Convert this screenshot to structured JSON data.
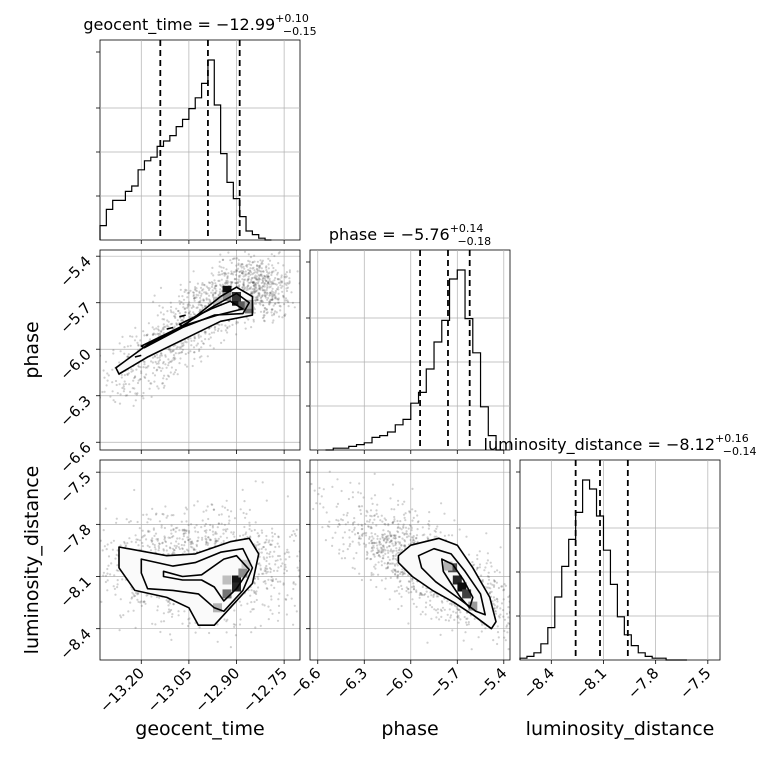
{
  "colors": {
    "ink": "#000000",
    "grid": "#b0b0b0",
    "background": "#ffffff"
  },
  "chart_data": {
    "type": "corner",
    "parameters": [
      "geocent_time",
      "phase",
      "luminosity_distance"
    ],
    "axis_labels": {
      "x": [
        "geocent_time",
        "phase",
        "luminosity_distance"
      ],
      "y": [
        "phase",
        "luminosity_distance"
      ]
    },
    "ranges": {
      "geocent_time": [
        -13.33,
        -12.7
      ],
      "phase": [
        -6.65,
        -5.36
      ],
      "luminosity_distance": [
        -8.58,
        -7.43
      ]
    },
    "ticks": {
      "geocent_time": {
        "values": [
          -13.2,
          -13.05,
          -12.9,
          -12.75
        ],
        "labels": [
          "−13.20",
          "−13.05",
          "−12.90",
          "−12.75"
        ]
      },
      "phase": {
        "values": [
          -6.6,
          -6.3,
          -6.0,
          -5.7,
          -5.4
        ],
        "labels": [
          "−6.6",
          "−6.3",
          "−6.0",
          "−5.7",
          "−5.4"
        ]
      },
      "phase_y": {
        "values": [
          -5.4,
          -5.7,
          -6.0,
          -6.3,
          -6.6
        ],
        "labels": [
          "−5.4",
          "−5.7",
          "−6.0",
          "−6.3",
          "−6.6"
        ]
      },
      "luminosity_distance": {
        "values": [
          -8.4,
          -8.1,
          -7.8,
          -7.5
        ],
        "labels": [
          "−8.4",
          "−8.1",
          "−7.8",
          "−7.5"
        ]
      },
      "luminosity_distance_y": {
        "values": [
          -7.5,
          -7.8,
          -8.1,
          -8.4
        ],
        "labels": [
          "−7.5",
          "−7.8",
          "−8.1",
          "−8.4"
        ]
      }
    },
    "titles": [
      {
        "parameter": "geocent_time",
        "prefix": "geocent_time = −12.99",
        "sup": "+0.10",
        "sub": "−0.15"
      },
      {
        "parameter": "phase",
        "prefix": "phase = −5.76",
        "sup": "+0.14",
        "sub": "−0.18"
      },
      {
        "parameter": "luminosity_distance",
        "prefix": "luminosity_distance = −8.12",
        "sup": "+0.16",
        "sub": "−0.14"
      }
    ],
    "grid": true,
    "histograms": [
      {
        "parameter": "geocent_time",
        "bins": [
          -13.33,
          -13.31,
          -13.29,
          -13.27,
          -13.25,
          -13.23,
          -13.21,
          -13.19,
          -13.17,
          -13.15,
          -13.13,
          -13.11,
          -13.09,
          -13.07,
          -13.05,
          -13.03,
          -13.01,
          -12.99,
          -12.97,
          -12.95,
          -12.93,
          -12.91,
          -12.89,
          -12.87,
          -12.85,
          -12.83,
          -12.81,
          -12.79
        ],
        "counts": [
          0.08,
          0.17,
          0.22,
          0.22,
          0.27,
          0.3,
          0.39,
          0.44,
          0.46,
          0.52,
          0.55,
          0.58,
          0.63,
          0.67,
          0.73,
          0.79,
          0.87,
          1.0,
          0.75,
          0.48,
          0.32,
          0.23,
          0.13,
          0.05,
          0.03,
          0.01,
          0.0
        ],
        "quantiles": [
          -13.14,
          -12.99,
          -12.89
        ]
      },
      {
        "parameter": "phase",
        "bins": [
          -6.55,
          -6.5,
          -6.45,
          -6.4,
          -6.35,
          -6.3,
          -6.25,
          -6.2,
          -6.15,
          -6.1,
          -6.05,
          -6.0,
          -5.95,
          -5.9,
          -5.85,
          -5.8,
          -5.75,
          -5.7,
          -5.65,
          -5.6,
          -5.55,
          -5.5,
          -5.45,
          -5.4
        ],
        "counts": [
          0.0,
          0.01,
          0.01,
          0.02,
          0.03,
          0.04,
          0.07,
          0.08,
          0.1,
          0.14,
          0.17,
          0.26,
          0.32,
          0.45,
          0.6,
          0.72,
          0.95,
          1.0,
          0.73,
          0.54,
          0.24,
          0.08,
          0.0
        ],
        "quantiles": [
          -5.94,
          -5.76,
          -5.62
        ]
      },
      {
        "parameter": "luminosity_distance",
        "bins": [
          -8.58,
          -8.54,
          -8.5,
          -8.46,
          -8.42,
          -8.38,
          -8.34,
          -8.3,
          -8.26,
          -8.22,
          -8.18,
          -8.14,
          -8.1,
          -8.06,
          -8.02,
          -7.98,
          -7.94,
          -7.9,
          -7.86,
          -7.82,
          -7.78,
          -7.74,
          -7.7,
          -7.66,
          -7.62
        ],
        "counts": [
          0.01,
          0.02,
          0.04,
          0.09,
          0.18,
          0.35,
          0.52,
          0.67,
          0.82,
          1.0,
          0.95,
          0.8,
          0.61,
          0.42,
          0.24,
          0.14,
          0.08,
          0.04,
          0.02,
          0.01,
          0.01,
          0.0,
          0.0,
          0.0
        ],
        "quantiles": [
          -8.26,
          -8.12,
          -7.96
        ]
      }
    ],
    "panels_2d": [
      {
        "x": "geocent_time",
        "y": "phase",
        "samples": {
          "count": 1400,
          "seed": 11,
          "sigma": 0.03,
          "pivot": [
            -12.86,
            -5.52
          ],
          "left": [
            -13.31,
            -6.3
          ],
          "right": [
            -12.76,
            -5.72
          ],
          "peak": [
            -12.89,
            -5.62
          ]
        },
        "contours": [
          [
            [
              -13.28,
              -6.12
            ],
            [
              -13.18,
              -5.97
            ],
            [
              -13.06,
              -5.84
            ],
            [
              -12.95,
              -5.66
            ],
            [
              -12.9,
              -5.6
            ],
            [
              -12.85,
              -5.66
            ],
            [
              -12.85,
              -5.78
            ],
            [
              -12.95,
              -5.82
            ],
            [
              -13.05,
              -5.92
            ],
            [
              -13.18,
              -6.05
            ],
            [
              -13.27,
              -6.16
            ]
          ],
          [
            [
              -13.2,
              -5.98
            ],
            [
              -13.08,
              -5.86
            ],
            [
              -12.97,
              -5.72
            ],
            [
              -12.9,
              -5.64
            ],
            [
              -12.86,
              -5.7
            ],
            [
              -12.88,
              -5.77
            ],
            [
              -12.97,
              -5.78
            ],
            [
              -13.07,
              -5.86
            ],
            [
              -13.19,
              -5.99
            ]
          ],
          [
            [
              -13.08,
              -5.84
            ],
            [
              -12.98,
              -5.74
            ],
            [
              -12.92,
              -5.69
            ],
            [
              -12.88,
              -5.74
            ],
            [
              -12.96,
              -5.78
            ],
            [
              -13.07,
              -5.85
            ]
          ],
          [
            [
              -13.22,
              -6.05
            ],
            [
              -13.2,
              -6.04
            ]
          ],
          [
            [
              -13.12,
              -5.87
            ],
            [
              -13.1,
              -5.86
            ]
          ],
          [
            [
              -13.08,
              -5.79
            ],
            [
              -13.06,
              -5.78
            ]
          ]
        ],
        "density_cells": [
          [
            -12.93,
            -5.62,
            0.95
          ],
          [
            -12.9,
            -5.69,
            0.92
          ],
          [
            -12.9,
            -5.66,
            0.8
          ],
          [
            -12.88,
            -5.72,
            0.65
          ],
          [
            -12.86,
            -5.74,
            0.55
          ],
          [
            -12.93,
            -5.66,
            0.45
          ],
          [
            -12.86,
            -5.71,
            0.35
          ],
          [
            -12.96,
            -5.69,
            0.25
          ]
        ]
      },
      {
        "x": "geocent_time",
        "y": "luminosity_distance",
        "samples": {
          "count": 1400,
          "seed": 23,
          "sigma": 0.09,
          "center": [
            -13.02,
            -8.05
          ],
          "spread": [
            0.16,
            0.15
          ],
          "peak": [
            -12.89,
            -8.15
          ]
        },
        "contours": [
          [
            [
              -13.27,
              -7.93
            ],
            [
              -13.12,
              -7.98
            ],
            [
              -13.03,
              -7.97
            ],
            [
              -12.92,
              -7.9
            ],
            [
              -12.86,
              -7.88
            ],
            [
              -12.83,
              -7.97
            ],
            [
              -12.85,
              -8.14
            ],
            [
              -12.92,
              -8.28
            ],
            [
              -12.97,
              -8.38
            ],
            [
              -13.02,
              -8.38
            ],
            [
              -13.05,
              -8.28
            ],
            [
              -13.12,
              -8.22
            ],
            [
              -13.22,
              -8.18
            ],
            [
              -13.27,
              -8.05
            ],
            [
              -13.27,
              -7.93
            ]
          ],
          [
            [
              -13.2,
              -8.0
            ],
            [
              -13.1,
              -8.04
            ],
            [
              -13.03,
              -8.02
            ],
            [
              -12.95,
              -7.96
            ],
            [
              -12.88,
              -7.94
            ],
            [
              -12.85,
              -8.05
            ],
            [
              -12.88,
              -8.18
            ],
            [
              -12.94,
              -8.3
            ],
            [
              -12.97,
              -8.28
            ],
            [
              -13.02,
              -8.2
            ],
            [
              -13.1,
              -8.18
            ],
            [
              -13.18,
              -8.17
            ],
            [
              -13.2,
              -8.08
            ],
            [
              -13.2,
              -8.0
            ]
          ],
          [
            [
              -13.13,
              -8.07
            ],
            [
              -13.07,
              -8.1
            ],
            [
              -13.01,
              -8.09
            ],
            [
              -12.94,
              -8.0
            ],
            [
              -12.9,
              -7.98
            ],
            [
              -12.86,
              -8.06
            ],
            [
              -12.9,
              -8.17
            ],
            [
              -12.94,
              -8.24
            ],
            [
              -12.97,
              -8.16
            ],
            [
              -13.01,
              -8.12
            ],
            [
              -13.07,
              -8.12
            ],
            [
              -13.13,
              -8.1
            ],
            [
              -13.13,
              -8.07
            ]
          ]
        ],
        "density_cells": [
          [
            -12.9,
            -8.12,
            0.92
          ],
          [
            -12.9,
            -8.16,
            0.85
          ],
          [
            -12.88,
            -8.08,
            0.45
          ],
          [
            -12.93,
            -8.2,
            0.55
          ],
          [
            -12.96,
            -8.28,
            0.3
          ],
          [
            -12.93,
            -8.12,
            0.25
          ],
          [
            -12.87,
            -8.03,
            0.2
          ]
        ]
      },
      {
        "x": "phase",
        "y": "luminosity_distance",
        "samples": {
          "count": 1400,
          "seed": 37,
          "sigma": 0.1,
          "center": [
            -5.88,
            -8.05
          ],
          "slope": -0.95,
          "spread": [
            0.3,
            0.12
          ],
          "peak": [
            -5.68,
            -8.17
          ]
        },
        "contours": [
          [
            [
              -6.08,
              -7.98
            ],
            [
              -6.0,
              -7.92
            ],
            [
              -5.82,
              -7.88
            ],
            [
              -5.7,
              -7.92
            ],
            [
              -5.6,
              -8.05
            ],
            [
              -5.49,
              -8.22
            ],
            [
              -5.45,
              -8.36
            ],
            [
              -5.48,
              -8.4
            ],
            [
              -5.6,
              -8.32
            ],
            [
              -5.72,
              -8.25
            ],
            [
              -5.86,
              -8.18
            ],
            [
              -5.99,
              -8.1
            ],
            [
              -6.08,
              -8.02
            ],
            [
              -6.08,
              -7.98
            ]
          ],
          [
            [
              -5.95,
              -7.98
            ],
            [
              -5.85,
              -7.94
            ],
            [
              -5.74,
              -7.97
            ],
            [
              -5.65,
              -8.07
            ],
            [
              -5.55,
              -8.2
            ],
            [
              -5.52,
              -8.32
            ],
            [
              -5.58,
              -8.3
            ],
            [
              -5.7,
              -8.22
            ],
            [
              -5.84,
              -8.13
            ],
            [
              -5.93,
              -8.05
            ],
            [
              -5.95,
              -7.98
            ]
          ],
          [
            [
              -5.8,
              -8.0
            ],
            [
              -5.73,
              -8.03
            ],
            [
              -5.66,
              -8.12
            ],
            [
              -5.6,
              -8.22
            ],
            [
              -5.62,
              -8.28
            ],
            [
              -5.68,
              -8.22
            ],
            [
              -5.74,
              -8.14
            ],
            [
              -5.79,
              -8.07
            ],
            [
              -5.8,
              -8.0
            ]
          ]
        ],
        "density_cells": [
          [
            -5.73,
            -8.05,
            0.7
          ],
          [
            -5.7,
            -8.12,
            0.85
          ],
          [
            -5.67,
            -8.16,
            0.95
          ],
          [
            -5.64,
            -8.2,
            0.75
          ],
          [
            -5.6,
            -8.27,
            0.4
          ],
          [
            -5.76,
            -8.04,
            0.3
          ]
        ]
      }
    ]
  }
}
